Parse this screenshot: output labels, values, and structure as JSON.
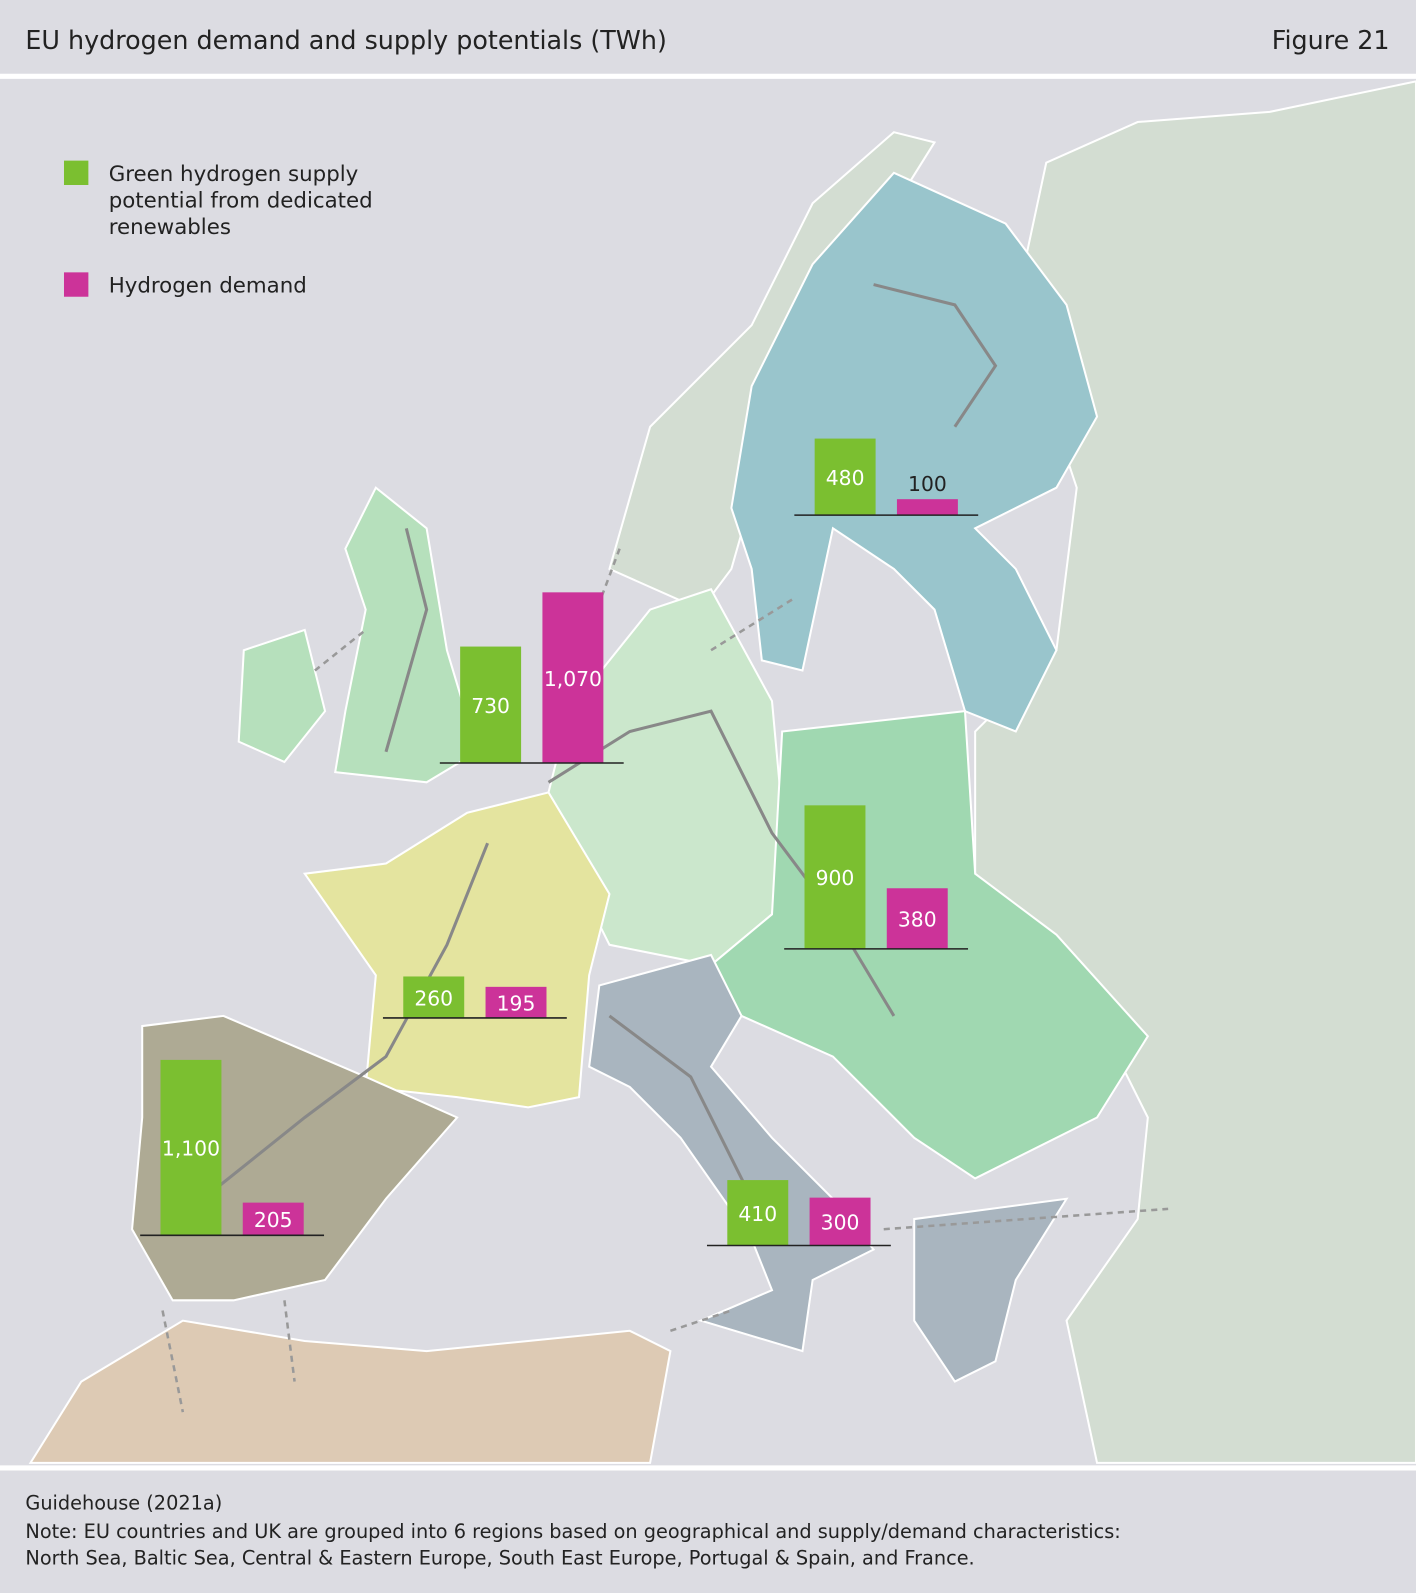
{
  "header": {
    "title": "EU hydrogen demand and supply potentials (TWh)",
    "figure": "Figure 21"
  },
  "legend": [
    {
      "label_lines": [
        "Green hydrogen supply",
        "potential from dedicated",
        "renewables"
      ],
      "color": "#7bbf30"
    },
    {
      "label_lines": [
        "Hydrogen demand"
      ],
      "color": "#cc3399"
    }
  ],
  "regions": [
    {
      "supply": 480,
      "demand": 100
    },
    {
      "supply": 730,
      "demand": {
        "value": 1070,
        "label": "1,070"
      }
    },
    {
      "supply": 900,
      "demand": 380
    },
    {
      "supply": 260,
      "demand": 195
    },
    {
      "supply": {
        "value": 1100,
        "label": "1,100"
      },
      "demand": 205
    },
    {
      "supply": 410,
      "demand": 300
    }
  ],
  "footer": {
    "source": "Guidehouse (2021a)",
    "note": [
      "Note: EU countries and UK are grouped into 6 regions based on geographical and supply/demand characteristics:",
      "North Sea, Baltic Sea, Central & Eastern Europe, South East Europe, Portugal & Spain, and France."
    ]
  }
}
